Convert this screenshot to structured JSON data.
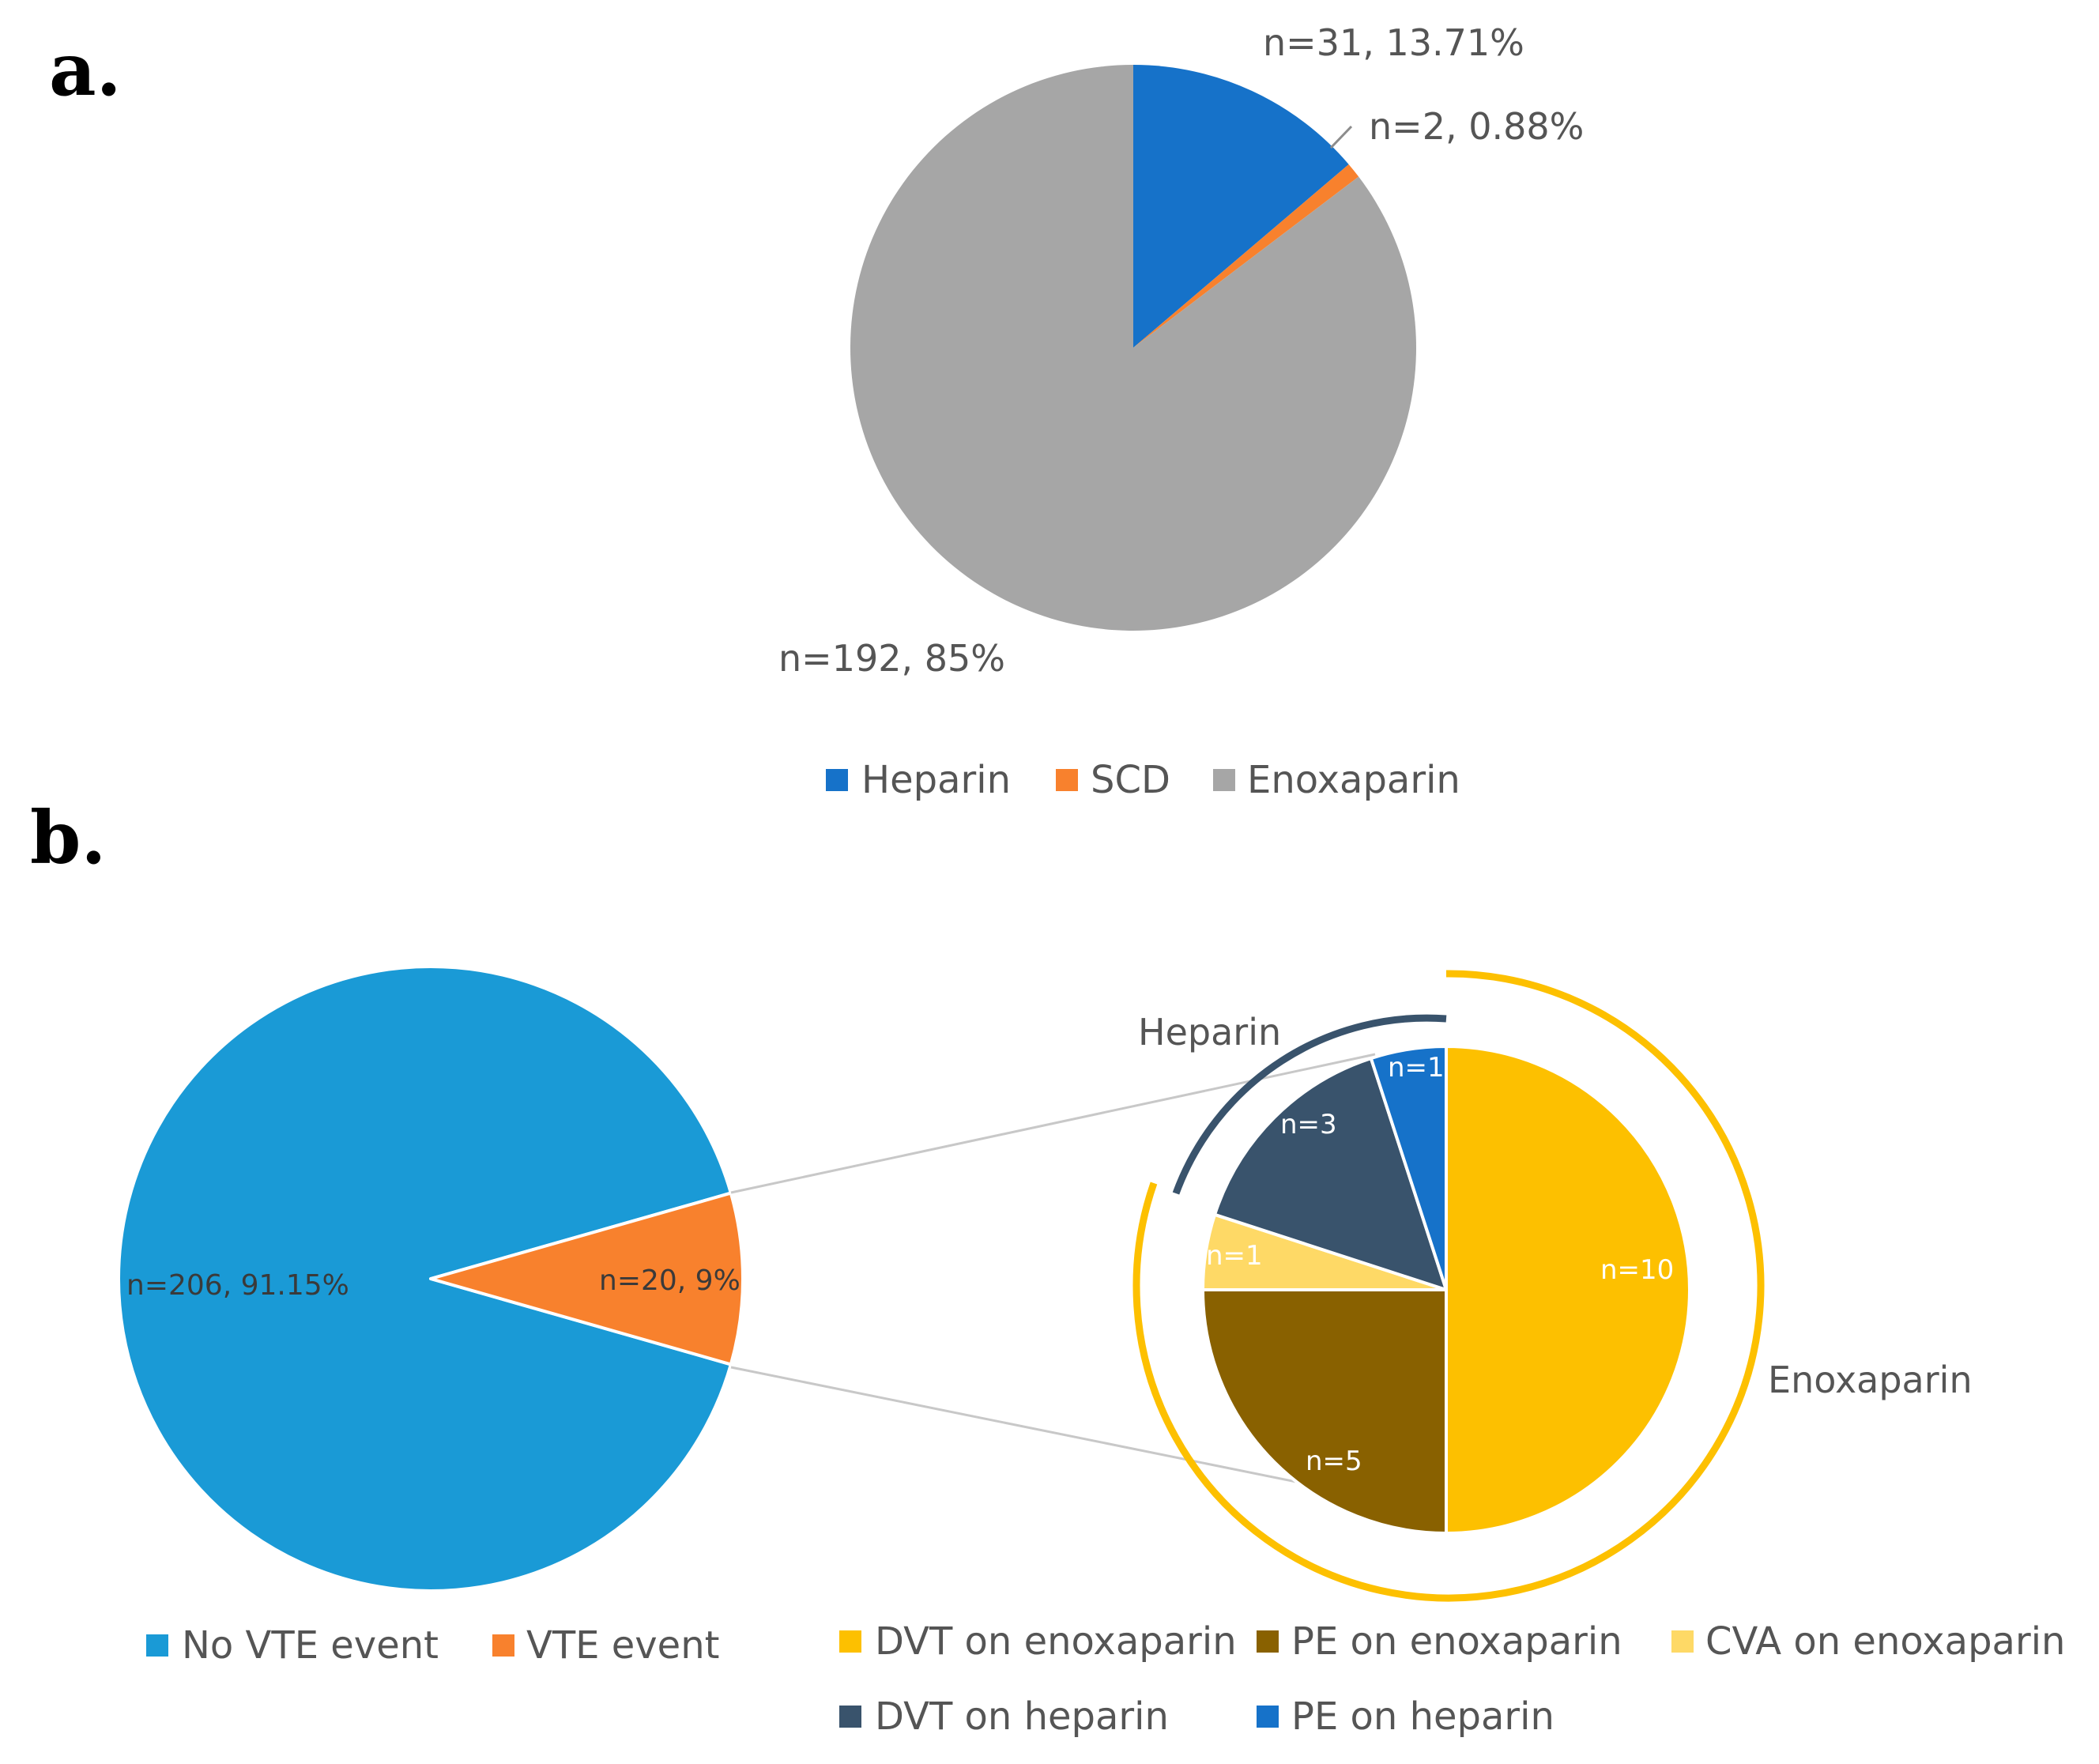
{
  "panels": {
    "a": "a.",
    "b": "b."
  },
  "chart_data": [
    {
      "type": "pie",
      "panel": "a.",
      "categories": [
        "Heparin",
        "SCD",
        "Enoxaparin"
      ],
      "values": [
        31,
        2,
        192
      ],
      "colors": [
        "#1672c9",
        "#f8812d",
        "#a6a6a6"
      ],
      "data_labels": [
        "n=31, 13.71%",
        "n=2, 0.88%",
        "n=192, 85%"
      ],
      "legend": [
        "Heparin",
        "SCD",
        "Enoxaparin"
      ],
      "legend_position": "bottom"
    },
    {
      "type": "pie",
      "panel": "b.",
      "categories": [
        "No VTE event",
        "VTE event"
      ],
      "values": [
        206,
        20
      ],
      "colors": [
        "#1a9ad6",
        "#f8812d"
      ],
      "data_labels": [
        "n=206, 91.15%",
        "n=20, 9%"
      ],
      "legend": [
        "No VTE event",
        "VTE event"
      ],
      "legend_position": "bottom"
    },
    {
      "type": "pie",
      "panel": "b.",
      "categories": [
        "DVT on enoxaparin",
        "PE on enoxaparin",
        "CVA on enoxaparin",
        "DVT on heparin",
        "PE on heparin"
      ],
      "values": [
        10,
        5,
        1,
        3,
        1
      ],
      "colors": [
        "#fdc000",
        "#896100",
        "#fed966",
        "#39536c",
        "#1672c9"
      ],
      "data_labels": [
        "n=10",
        "n=5",
        "n=1",
        "n=3",
        "n=1"
      ],
      "groups": [
        "Heparin",
        "Enoxaparin"
      ],
      "legend": [
        "DVT on enoxaparin",
        "PE on enoxaparin",
        "CVA on enoxaparin",
        "DVT on heparin",
        "PE on heparin"
      ],
      "legend_position": "bottom"
    }
  ]
}
